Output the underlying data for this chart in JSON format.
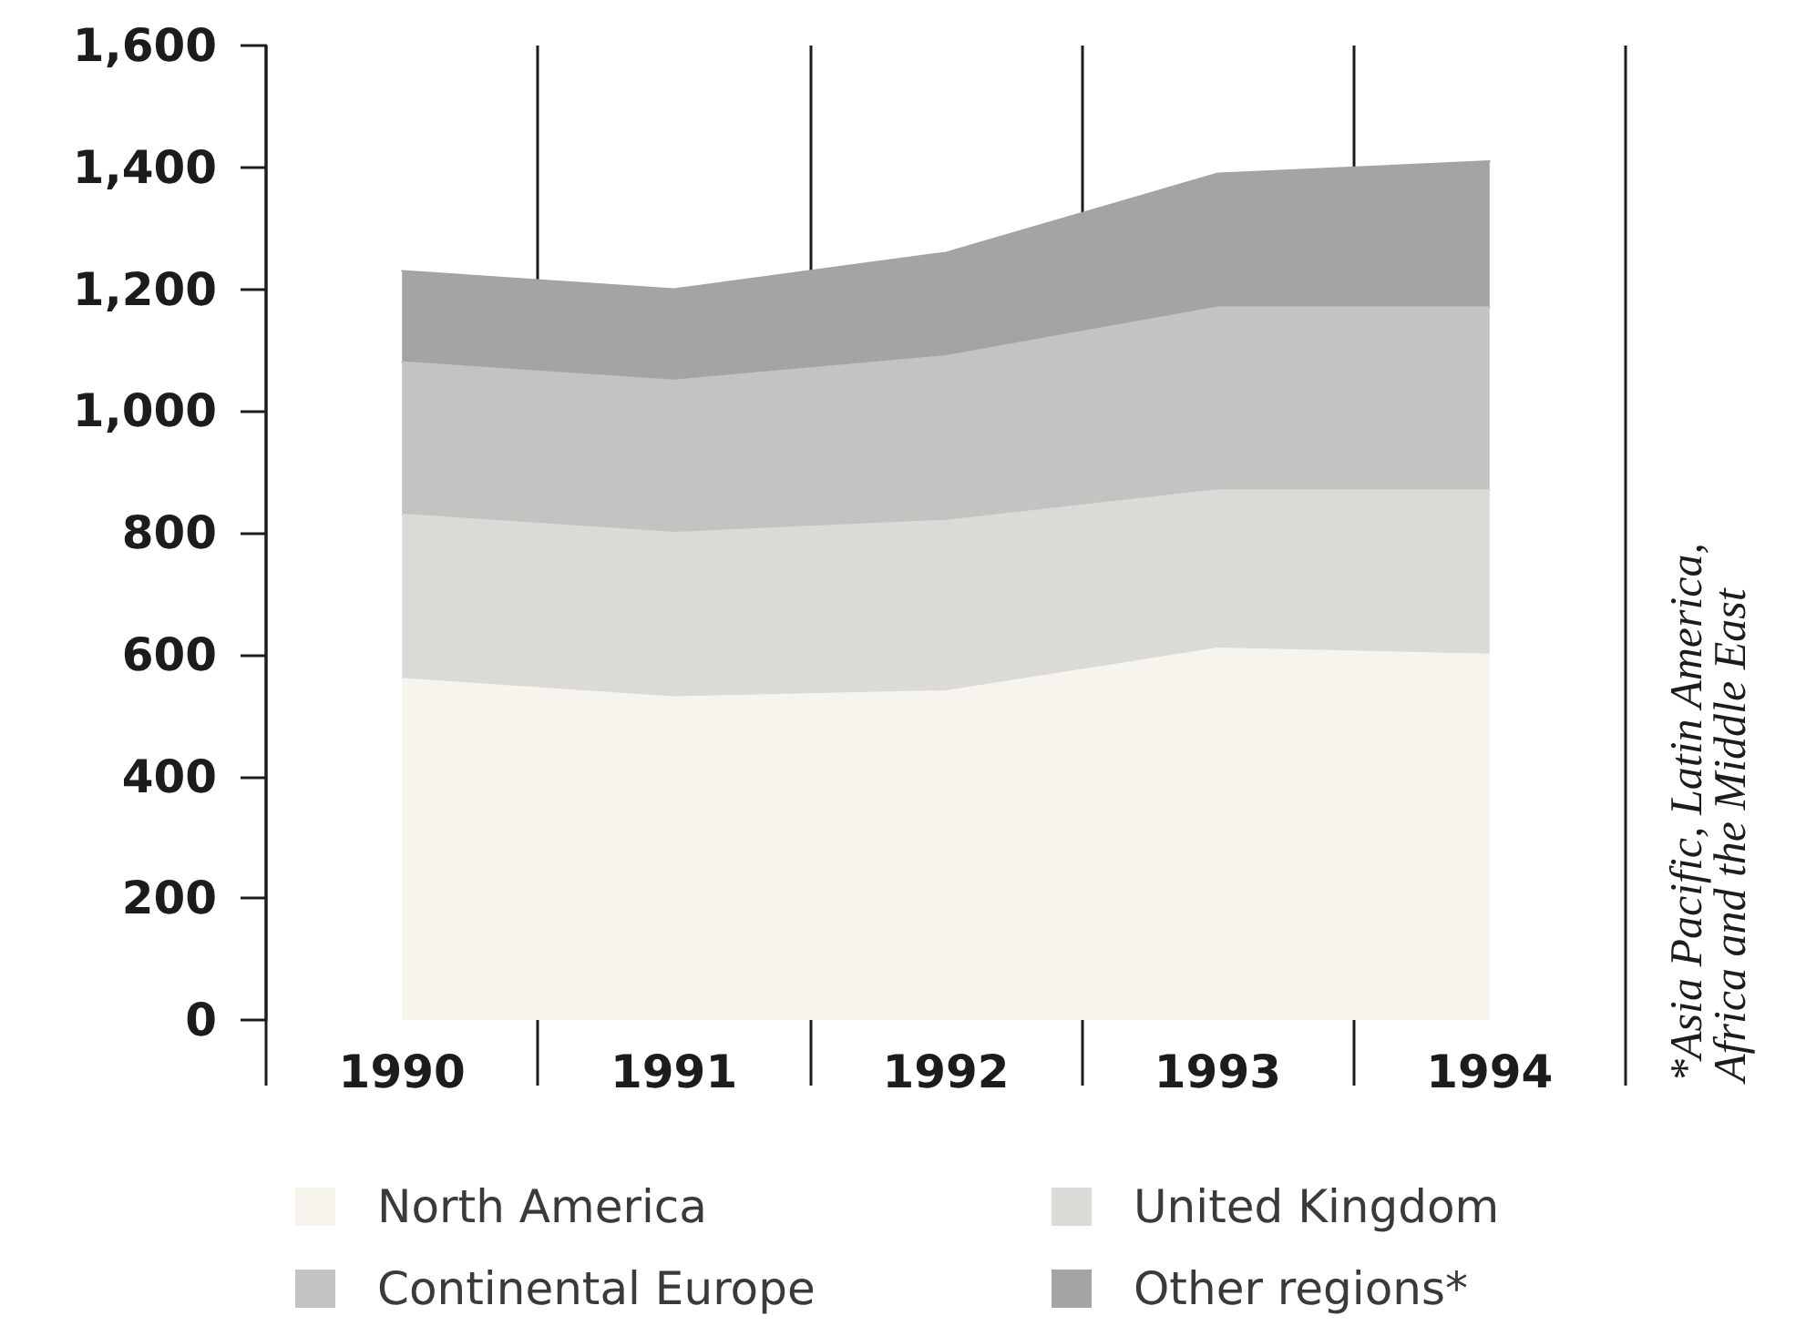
{
  "chart_data": {
    "type": "area",
    "stacked": true,
    "categories": [
      "1990",
      "1991",
      "1992",
      "1993",
      "1994"
    ],
    "series": [
      {
        "name": "North America",
        "color": "#f7f3ed",
        "values": [
          560,
          530,
          540,
          610,
          600
        ]
      },
      {
        "name": "United Kingdom",
        "color": "#dadbd7",
        "values": [
          270,
          270,
          280,
          260,
          270
        ]
      },
      {
        "name": "Continental Europe",
        "color": "#c3c4c1",
        "values": [
          250,
          250,
          270,
          300,
          300
        ]
      },
      {
        "name": "Other regions*",
        "color": "#a2a5a2",
        "values": [
          150,
          150,
          170,
          220,
          240
        ]
      }
    ],
    "ylim": [
      0,
      1600
    ],
    "yticks": [
      0,
      200,
      400,
      600,
      800,
      {
        "value": 1000,
        "label": "1,000"
      },
      {
        "value": 1200,
        "label": "1,200"
      },
      {
        "value": 1400,
        "label": "1,400"
      },
      {
        "value": 1600,
        "label": "1,600"
      }
    ],
    "grid": "x",
    "legend": "bottom",
    "annotations": [
      "*Asia Pacific, Latin America, Africa and the Middle East"
    ]
  }
}
